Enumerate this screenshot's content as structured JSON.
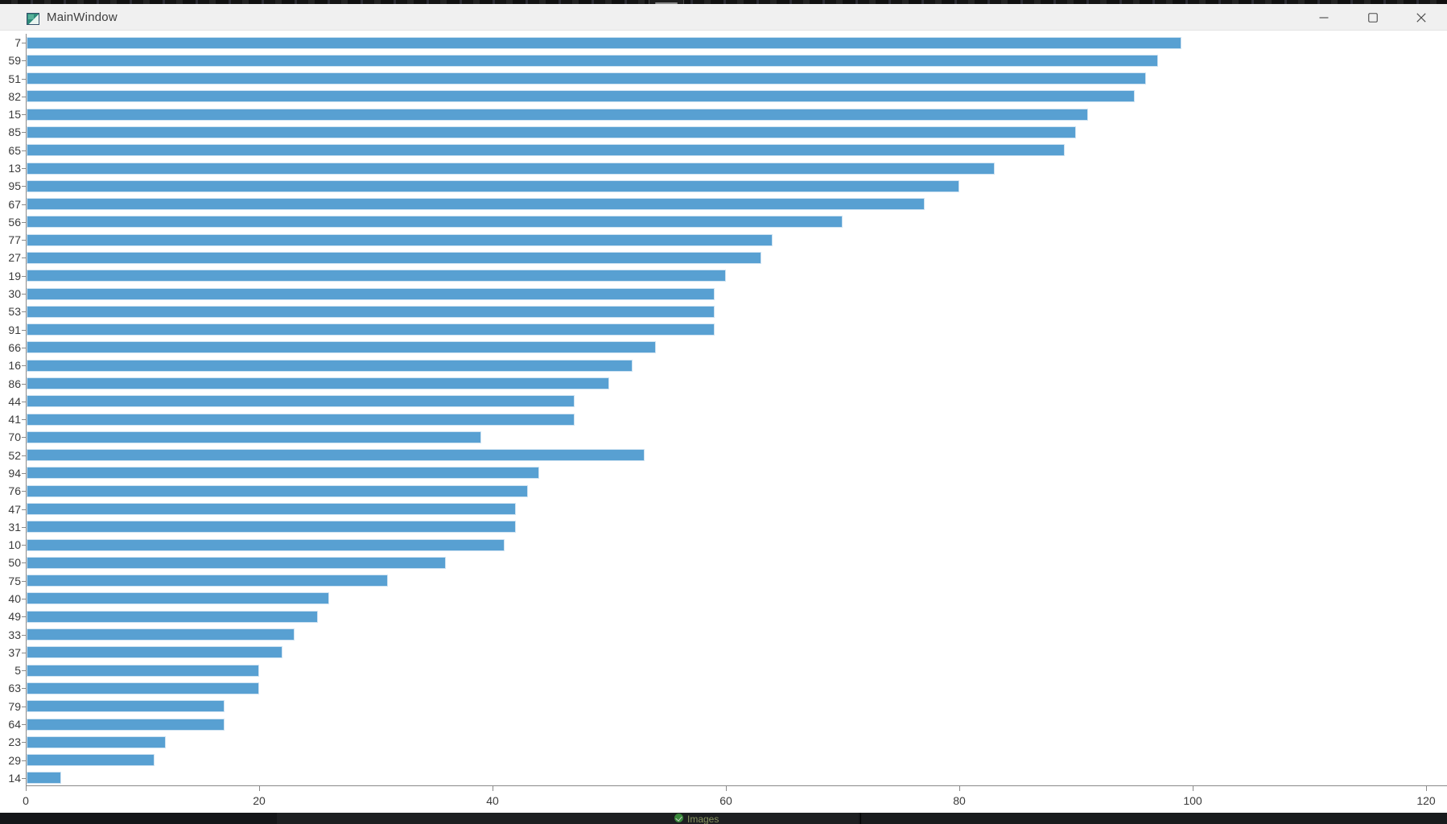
{
  "window": {
    "title": "MainWindow",
    "controls": {
      "minimize": "minimize",
      "maximize": "maximize",
      "close": "close"
    }
  },
  "chart_data": {
    "type": "bar",
    "orientation": "horizontal",
    "title": "",
    "xlabel": "",
    "ylabel": "",
    "categories": [
      "7",
      "59",
      "51",
      "82",
      "15",
      "85",
      "65",
      "13",
      "95",
      "67",
      "56",
      "77",
      "27",
      "19",
      "30",
      "53",
      "91",
      "66",
      "16",
      "86",
      "44",
      "41",
      "70",
      "52",
      "94",
      "76",
      "47",
      "31",
      "10",
      "50",
      "75",
      "40",
      "49",
      "33",
      "37",
      "5",
      "63",
      "79",
      "64",
      "23",
      "29",
      "14"
    ],
    "values": [
      99,
      97,
      96,
      95,
      91,
      90,
      89,
      83,
      80,
      77,
      70,
      64,
      63,
      60,
      59,
      59,
      59,
      54,
      52,
      50,
      47,
      47,
      39,
      53,
      44,
      43,
      42,
      42,
      41,
      36,
      31,
      26,
      25,
      23,
      22,
      20,
      20,
      17,
      17,
      12,
      11,
      3
    ],
    "xlim": [
      0,
      120
    ],
    "x_ticks": [
      0,
      20,
      40,
      60,
      80,
      100,
      120
    ],
    "grid": false,
    "legend": false,
    "bar_color": "#58a0d2",
    "bar_edge_color": "#cfe3f2"
  },
  "taskbar": {
    "status_text": "Images"
  }
}
